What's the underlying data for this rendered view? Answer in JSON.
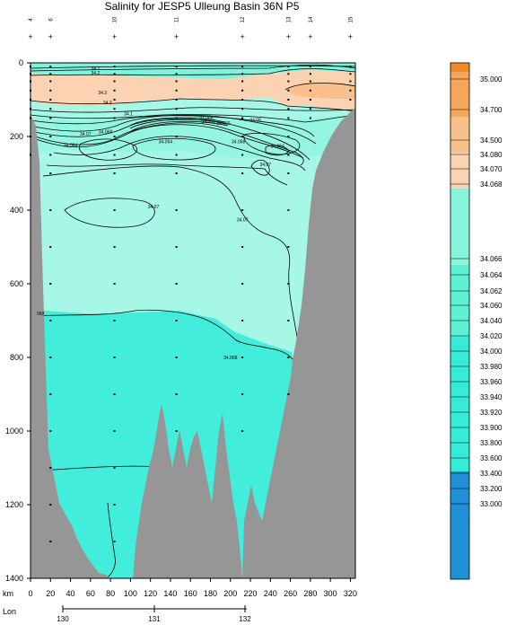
{
  "chart_data": {
    "type": "section-contour",
    "title": "Salinity for JESP5 Ulleung Basin 36N P5",
    "x_axis": {
      "label": "km",
      "range": [
        0,
        325
      ],
      "ticks": [
        0,
        20,
        40,
        60,
        80,
        100,
        120,
        140,
        160,
        180,
        200,
        220,
        240,
        260,
        280,
        300,
        320
      ]
    },
    "lon_axis": {
      "label": "Lon",
      "ticks": [
        130,
        131,
        132
      ]
    },
    "y_axis": {
      "label": "",
      "range": [
        0,
        1400
      ],
      "inverted": true,
      "ticks": [
        0,
        200,
        400,
        600,
        800,
        1000,
        1200,
        1400
      ]
    },
    "stations": [
      {
        "km": 0,
        "label": "4",
        "max_depth": 260
      },
      {
        "km": 20,
        "label": "6",
        "max_depth": 1390
      },
      {
        "km": 84,
        "label": "10",
        "max_depth": 1330
      },
      {
        "km": 146,
        "label": "11",
        "max_depth": 1020
      },
      {
        "km": 212,
        "label": "12",
        "max_depth": 1090
      },
      {
        "km": 258,
        "label": "13",
        "max_depth": 950
      },
      {
        "km": 280,
        "label": "14",
        "max_depth": 160
      },
      {
        "km": 320,
        "label": "15",
        "max_depth": 120
      }
    ],
    "contour_labels": [
      {
        "text": "34.2",
        "km": 65,
        "depth": 20
      },
      {
        "text": "34.2",
        "km": 65,
        "depth": 32
      },
      {
        "text": "34.3",
        "km": 72,
        "depth": 85
      },
      {
        "text": "34.2",
        "km": 77,
        "depth": 112
      },
      {
        "text": "34.1",
        "km": 98,
        "depth": 143
      },
      {
        "text": "34.066",
        "km": 176,
        "depth": 155
      },
      {
        "text": "34.068",
        "km": 178,
        "depth": 163
      },
      {
        "text": "34.08",
        "km": 225,
        "depth": 160
      },
      {
        "text": "34.066",
        "km": 193,
        "depth": 168
      },
      {
        "text": "34.068",
        "km": 75,
        "depth": 192
      },
      {
        "text": "34.07",
        "km": 55,
        "depth": 197
      },
      {
        "text": "34.064",
        "km": 40,
        "depth": 228
      },
      {
        "text": "34.064",
        "km": 135,
        "depth": 218
      },
      {
        "text": "34.068",
        "km": 208,
        "depth": 218
      },
      {
        "text": "34.064",
        "km": 247,
        "depth": 230
      },
      {
        "text": "34.07",
        "km": 235,
        "depth": 280
      },
      {
        "text": "34.07",
        "km": 123,
        "depth": 395
      },
      {
        "text": "34.07",
        "km": 212,
        "depth": 430
      },
      {
        "text": "068",
        "km": 10,
        "depth": 685
      },
      {
        "text": "34.068",
        "km": 200,
        "depth": 805
      }
    ],
    "legend": {
      "placement": "right",
      "levels": [
        {
          "label": "35.000",
          "color": "#f59a3e"
        },
        {
          "label": "34.700",
          "color": "#f9bd82"
        },
        {
          "label": "34.500",
          "color": "#fbc79a"
        },
        {
          "label": "34.080",
          "color": "#88f4d9"
        },
        {
          "label": "34.070",
          "color": "#88f4d9"
        },
        {
          "label": "34.068",
          "color": "#88f4d9"
        },
        {
          "label": "34.066",
          "color": "#5cf0d4"
        },
        {
          "label": "34.064",
          "color": "#5cf0d4"
        },
        {
          "label": "34.062",
          "color": "#5cf0d4"
        },
        {
          "label": "34.060",
          "color": "#5cf0d4"
        },
        {
          "label": "34.040",
          "color": "#35ecd9"
        },
        {
          "label": "34.020",
          "color": "#35ecd9"
        },
        {
          "label": "34.000",
          "color": "#35ecd9"
        },
        {
          "label": "33.980",
          "color": "#35ecd9"
        },
        {
          "label": "33.960",
          "color": "#35ecd9"
        },
        {
          "label": "33.940",
          "color": "#35ecd9"
        },
        {
          "label": "33.920",
          "color": "#35ecd9"
        },
        {
          "label": "33.900",
          "color": "#35ecd9"
        },
        {
          "label": "33.800",
          "color": "#1f8fd6"
        },
        {
          "label": "33.600",
          "color": "#1f8fd6"
        },
        {
          "label": "33.400",
          "color": "#1f8fd6"
        },
        {
          "label": "33.200",
          "color": "#1f8fd6"
        },
        {
          "label": "33.000",
          "color": "#1f8fd6"
        }
      ],
      "top_color": "#f4892a",
      "band_colors": [
        "#f4892a",
        "#f6a65a",
        "#f9c08c",
        "#fbd3b3",
        "#88f4d9",
        "#5cf0d4",
        "#35ecd9",
        "#1f8fd6"
      ]
    },
    "colors": {
      "orange_layer": "#fbd3b3",
      "light_cyan": "#a6f7e6",
      "mid_cyan": "#64f1da",
      "deep_cyan": "#3ceddc",
      "bathymetry": "#969696"
    }
  }
}
